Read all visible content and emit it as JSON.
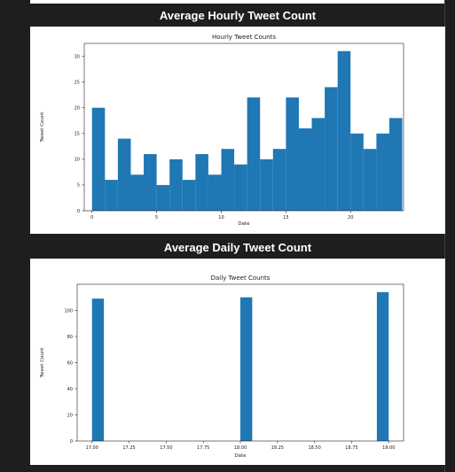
{
  "sections": [
    {
      "heading": "Average Hourly Tweet Count",
      "chart_data": {
        "type": "bar",
        "title": "Hourly Tweet Counts",
        "xlabel": "Date",
        "ylabel": "Tweet Count",
        "x": [
          0,
          1,
          2,
          3,
          4,
          5,
          6,
          7,
          8,
          9,
          10,
          11,
          12,
          13,
          14,
          15,
          16,
          17,
          18,
          19,
          20,
          21,
          22,
          23
        ],
        "values": [
          20,
          6,
          14,
          7,
          11,
          5,
          10,
          6,
          11,
          7,
          12,
          9,
          22,
          10,
          12,
          22,
          16,
          18,
          24,
          31,
          15,
          12,
          15,
          18
        ],
        "xlim": [
          -0.6,
          24.1
        ],
        "ylim": [
          0,
          32.5
        ],
        "xticks": [
          0,
          5,
          10,
          15,
          20
        ],
        "xtick_labels": [
          "0",
          "5",
          "10",
          "15",
          "20"
        ],
        "yticks": [
          0,
          5,
          10,
          15,
          20,
          25,
          30
        ],
        "ytick_labels": [
          "0",
          "5",
          "10",
          "15",
          "20",
          "25",
          "30"
        ],
        "bar_color": "#1f77b4",
        "grid": false
      }
    },
    {
      "heading": "Average Daily Tweet Count",
      "chart_data": {
        "type": "bar",
        "title": "Daily Tweet Counts",
        "xlabel": "Date",
        "ylabel": "Tweet Count",
        "x": [
          17.04,
          18.04,
          18.96
        ],
        "values": [
          109,
          110,
          114
        ],
        "bin_width": 0.08,
        "xlim": [
          16.9,
          19.1
        ],
        "ylim": [
          0,
          120
        ],
        "xticks": [
          17.0,
          17.25,
          17.5,
          17.75,
          18.0,
          18.25,
          18.5,
          18.75,
          19.0
        ],
        "xtick_labels": [
          "17.00",
          "17.25",
          "17.50",
          "17.75",
          "18.00",
          "18.25",
          "18.50",
          "18.75",
          "19.00"
        ],
        "yticks": [
          0,
          20,
          40,
          60,
          80,
          100
        ],
        "ytick_labels": [
          "0",
          "20",
          "40",
          "60",
          "80",
          "100"
        ],
        "bar_color": "#1f77b4",
        "grid": false
      }
    }
  ]
}
